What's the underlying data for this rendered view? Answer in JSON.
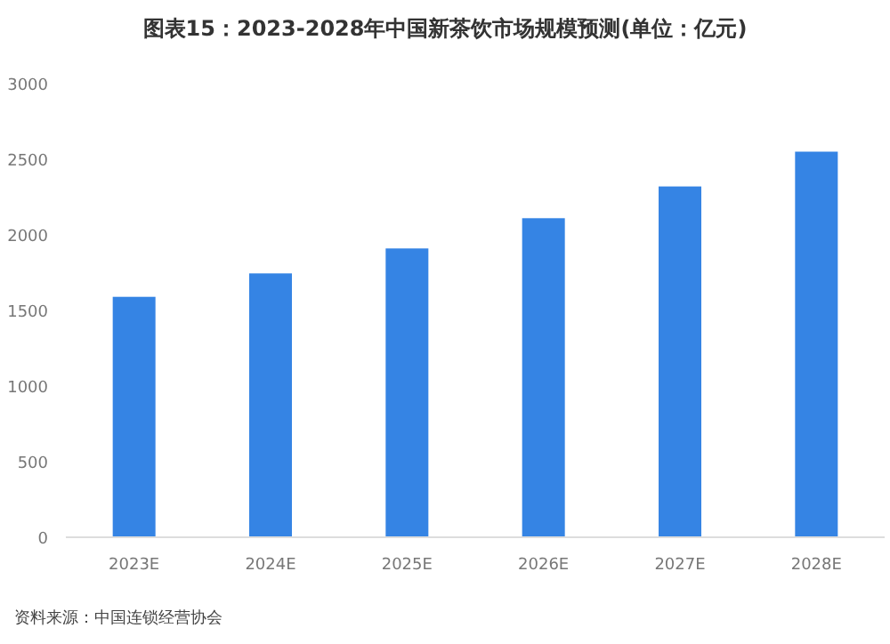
{
  "chart_data": {
    "type": "bar",
    "title": "图表15：2023-2028年中国新茶饮市场规模预测(单位：亿元)",
    "categories": [
      "2023E",
      "2024E",
      "2025E",
      "2026E",
      "2027E",
      "2028E"
    ],
    "values": [
      1590,
      1745,
      1910,
      2110,
      2320,
      2550
    ],
    "color": "#3584e4",
    "ylim": [
      0,
      3000
    ],
    "yticks": [
      0,
      500,
      1000,
      1500,
      2000,
      2500,
      3000
    ],
    "annotations": [
      "资料来源：中国连锁经营协会"
    ]
  }
}
